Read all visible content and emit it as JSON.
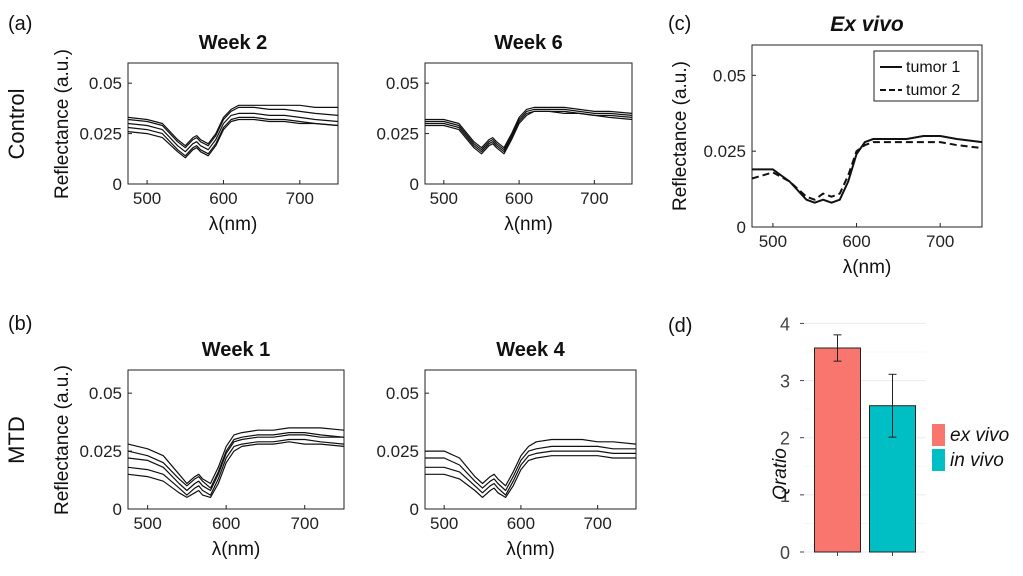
{
  "chart_data": [
    {
      "panel": "(a)",
      "row_label": "Control",
      "title": "Week 2",
      "type": "line",
      "xlabel": "λ(nm)",
      "ylabel": "Reflectance (a.u.)",
      "xlim": [
        475,
        750
      ],
      "ylim": [
        0,
        0.06
      ],
      "xticks": [
        "500",
        "600",
        "700"
      ],
      "yticks": [
        "0",
        "0.025",
        "0.05"
      ],
      "x": [
        475,
        500,
        520,
        540,
        550,
        560,
        565,
        570,
        580,
        590,
        600,
        610,
        620,
        640,
        660,
        680,
        700,
        720,
        750
      ],
      "series": [
        {
          "values": [
            0.03,
            0.029,
            0.027,
            0.019,
            0.016,
            0.02,
            0.021,
            0.019,
            0.017,
            0.022,
            0.03,
            0.034,
            0.035,
            0.035,
            0.034,
            0.034,
            0.033,
            0.032,
            0.031
          ]
        },
        {
          "values": [
            0.028,
            0.027,
            0.025,
            0.017,
            0.014,
            0.018,
            0.019,
            0.017,
            0.015,
            0.02,
            0.028,
            0.032,
            0.033,
            0.033,
            0.032,
            0.032,
            0.031,
            0.03,
            0.029
          ]
        },
        {
          "values": [
            0.032,
            0.031,
            0.029,
            0.021,
            0.018,
            0.022,
            0.023,
            0.021,
            0.019,
            0.024,
            0.032,
            0.036,
            0.038,
            0.038,
            0.037,
            0.037,
            0.036,
            0.035,
            0.034
          ]
        },
        {
          "values": [
            0.026,
            0.025,
            0.023,
            0.016,
            0.013,
            0.017,
            0.018,
            0.016,
            0.014,
            0.019,
            0.027,
            0.031,
            0.032,
            0.032,
            0.031,
            0.031,
            0.03,
            0.03,
            0.029
          ]
        },
        {
          "values": [
            0.033,
            0.032,
            0.03,
            0.022,
            0.019,
            0.023,
            0.024,
            0.022,
            0.02,
            0.025,
            0.033,
            0.037,
            0.039,
            0.039,
            0.039,
            0.039,
            0.039,
            0.038,
            0.038
          ]
        }
      ]
    },
    {
      "panel": "",
      "row_label": "",
      "title": "Week 6",
      "type": "line",
      "xlabel": "λ(nm)",
      "ylabel": "",
      "xlim": [
        475,
        750
      ],
      "ylim": [
        0,
        0.06
      ],
      "xticks": [
        "500",
        "600",
        "700"
      ],
      "yticks": [
        "0",
        "0.025",
        "0.05"
      ],
      "x": [
        475,
        500,
        520,
        540,
        550,
        560,
        565,
        570,
        580,
        590,
        600,
        610,
        620,
        640,
        660,
        680,
        700,
        720,
        750
      ],
      "series": [
        {
          "values": [
            0.031,
            0.031,
            0.029,
            0.02,
            0.017,
            0.021,
            0.022,
            0.02,
            0.017,
            0.024,
            0.032,
            0.036,
            0.037,
            0.037,
            0.037,
            0.036,
            0.035,
            0.035,
            0.034
          ]
        },
        {
          "values": [
            0.03,
            0.03,
            0.028,
            0.019,
            0.016,
            0.02,
            0.021,
            0.019,
            0.016,
            0.023,
            0.031,
            0.035,
            0.036,
            0.036,
            0.036,
            0.035,
            0.034,
            0.034,
            0.033
          ]
        },
        {
          "values": [
            0.032,
            0.032,
            0.03,
            0.021,
            0.018,
            0.022,
            0.023,
            0.021,
            0.018,
            0.025,
            0.033,
            0.037,
            0.038,
            0.038,
            0.038,
            0.037,
            0.036,
            0.036,
            0.035
          ]
        },
        {
          "values": [
            0.029,
            0.029,
            0.027,
            0.018,
            0.015,
            0.019,
            0.02,
            0.018,
            0.015,
            0.022,
            0.03,
            0.034,
            0.036,
            0.036,
            0.035,
            0.035,
            0.034,
            0.033,
            0.032
          ]
        }
      ]
    },
    {
      "panel": "(c)",
      "row_label": "",
      "title": "Ex vivo",
      "type": "line",
      "xlabel": "λ(nm)",
      "ylabel": "Reflectance (a.u.)",
      "xlim": [
        475,
        750
      ],
      "ylim": [
        0,
        0.06
      ],
      "xticks": [
        "500",
        "600",
        "700"
      ],
      "yticks": [
        "0",
        "0.025",
        "0.05"
      ],
      "legend": "top-right",
      "x": [
        475,
        500,
        520,
        540,
        550,
        560,
        570,
        580,
        590,
        600,
        610,
        620,
        640,
        660,
        680,
        700,
        720,
        750
      ],
      "series": [
        {
          "name": "tumor 1",
          "dash": false,
          "values": [
            0.019,
            0.019,
            0.015,
            0.009,
            0.008,
            0.009,
            0.008,
            0.009,
            0.015,
            0.024,
            0.028,
            0.029,
            0.029,
            0.029,
            0.03,
            0.03,
            0.029,
            0.028
          ]
        },
        {
          "name": "tumor 2",
          "dash": true,
          "values": [
            0.016,
            0.018,
            0.015,
            0.01,
            0.009,
            0.011,
            0.01,
            0.011,
            0.017,
            0.025,
            0.027,
            0.028,
            0.028,
            0.028,
            0.028,
            0.028,
            0.027,
            0.026
          ]
        }
      ]
    },
    {
      "panel": "(b)",
      "row_label": "MTD",
      "title": "Week 1",
      "type": "line",
      "xlabel": "λ(nm)",
      "ylabel": "Reflectance (a.u.)",
      "xlim": [
        475,
        750
      ],
      "ylim": [
        0,
        0.06
      ],
      "xticks": [
        "500",
        "600",
        "700"
      ],
      "yticks": [
        "0",
        "0.025",
        "0.05"
      ],
      "x": [
        475,
        500,
        520,
        540,
        550,
        560,
        565,
        570,
        580,
        590,
        600,
        610,
        620,
        640,
        660,
        680,
        700,
        720,
        750
      ],
      "series": [
        {
          "values": [
            0.028,
            0.026,
            0.023,
            0.015,
            0.011,
            0.014,
            0.015,
            0.013,
            0.011,
            0.018,
            0.027,
            0.032,
            0.033,
            0.034,
            0.034,
            0.035,
            0.035,
            0.035,
            0.034
          ]
        },
        {
          "values": [
            0.022,
            0.021,
            0.018,
            0.011,
            0.008,
            0.011,
            0.012,
            0.01,
            0.008,
            0.015,
            0.024,
            0.029,
            0.03,
            0.031,
            0.031,
            0.032,
            0.032,
            0.031,
            0.031
          ]
        },
        {
          "values": [
            0.018,
            0.017,
            0.015,
            0.009,
            0.006,
            0.009,
            0.01,
            0.008,
            0.006,
            0.013,
            0.022,
            0.027,
            0.028,
            0.029,
            0.029,
            0.03,
            0.03,
            0.029,
            0.028
          ]
        },
        {
          "values": [
            0.015,
            0.014,
            0.012,
            0.007,
            0.005,
            0.007,
            0.008,
            0.006,
            0.005,
            0.011,
            0.02,
            0.025,
            0.027,
            0.028,
            0.028,
            0.029,
            0.028,
            0.028,
            0.027
          ]
        },
        {
          "values": [
            0.025,
            0.023,
            0.02,
            0.013,
            0.01,
            0.013,
            0.014,
            0.012,
            0.009,
            0.016,
            0.025,
            0.03,
            0.031,
            0.032,
            0.032,
            0.033,
            0.033,
            0.032,
            0.031
          ]
        }
      ]
    },
    {
      "panel": "",
      "row_label": "",
      "title": "Week 4",
      "type": "line",
      "xlabel": "λ(nm)",
      "ylabel": "",
      "xlim": [
        475,
        750
      ],
      "ylim": [
        0,
        0.06
      ],
      "xticks": [
        "500",
        "600",
        "700"
      ],
      "yticks": [
        "0",
        "0.025",
        "0.05"
      ],
      "x": [
        475,
        500,
        520,
        540,
        550,
        560,
        565,
        570,
        580,
        590,
        600,
        610,
        620,
        640,
        660,
        680,
        700,
        720,
        750
      ],
      "series": [
        {
          "values": [
            0.022,
            0.022,
            0.019,
            0.012,
            0.009,
            0.012,
            0.013,
            0.011,
            0.008,
            0.014,
            0.021,
            0.025,
            0.026,
            0.027,
            0.027,
            0.027,
            0.027,
            0.026,
            0.026
          ]
        },
        {
          "values": [
            0.018,
            0.018,
            0.016,
            0.01,
            0.007,
            0.01,
            0.011,
            0.009,
            0.006,
            0.012,
            0.019,
            0.023,
            0.024,
            0.025,
            0.025,
            0.025,
            0.025,
            0.024,
            0.024
          ]
        },
        {
          "values": [
            0.015,
            0.015,
            0.013,
            0.008,
            0.005,
            0.008,
            0.009,
            0.007,
            0.005,
            0.01,
            0.017,
            0.021,
            0.022,
            0.023,
            0.023,
            0.023,
            0.023,
            0.022,
            0.022
          ]
        },
        {
          "values": [
            0.025,
            0.025,
            0.022,
            0.014,
            0.011,
            0.014,
            0.015,
            0.013,
            0.01,
            0.016,
            0.023,
            0.027,
            0.029,
            0.03,
            0.03,
            0.03,
            0.029,
            0.029,
            0.028
          ]
        }
      ]
    },
    {
      "panel": "(d)",
      "type": "bar",
      "ylabel": "Qratio",
      "ylim": [
        0,
        4.2
      ],
      "yticks": [
        "0",
        "1",
        "2",
        "3",
        "4"
      ],
      "categories": [
        "ex vivo",
        "in vivo"
      ],
      "values": [
        3.57,
        2.56
      ],
      "error": [
        0.23,
        0.55
      ],
      "colors": [
        "#f8766d",
        "#00bfc4"
      ],
      "legend": "right",
      "grid": true
    }
  ]
}
